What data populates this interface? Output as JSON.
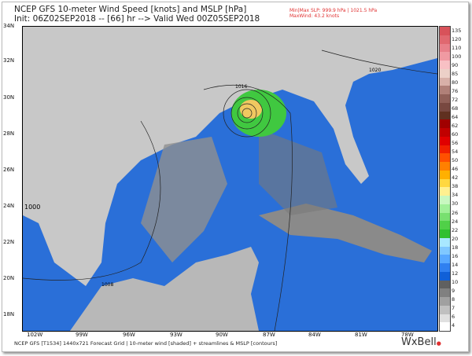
{
  "header": {
    "title": "NCEP GFS 10-meter Wind Speed [knots] and MSLP [hPa]",
    "subtitle": "Init: 06Z02SEP2018 -- [66] hr --> Valid Wed 00Z05SEP2018",
    "slp": "Min|Max SLP: 999.9 hPa | 1021.5 hPa",
    "maxwind": "MaxWind: 43.2 knots"
  },
  "axes": {
    "lat": [
      "34N",
      "32N",
      "30N",
      "28N",
      "26N",
      "24N",
      "22N",
      "20N",
      "18N"
    ],
    "lon": [
      "102W",
      "99W",
      "96W",
      "93W",
      "90W",
      "87W",
      "84W",
      "81W",
      "78W"
    ]
  },
  "contours": [
    "1016",
    "1020",
    "1008",
    "1000"
  ],
  "colorbar": {
    "labels": [
      "135",
      "120",
      "110",
      "100",
      "90",
      "85",
      "80",
      "76",
      "72",
      "68",
      "64",
      "62",
      "60",
      "56",
      "54",
      "50",
      "46",
      "42",
      "38",
      "34",
      "30",
      "26",
      "24",
      "22",
      "20",
      "18",
      "16",
      "14",
      "12",
      "10",
      "9",
      "8",
      "7",
      "6",
      "4"
    ],
    "colors": [
      "#d8525a",
      "#e06870",
      "#e8808a",
      "#f09aa2",
      "#f8c0c4",
      "#ecd0c8",
      "#d8b0a8",
      "#b08078",
      "#906058",
      "#784840",
      "#603020",
      "#a00000",
      "#c00000",
      "#e00000",
      "#f02000",
      "#ff5000",
      "#ff8000",
      "#ffb000",
      "#ffd840",
      "#fff090",
      "#c8f8c0",
      "#a0f098",
      "#78e070",
      "#50d048",
      "#30c030",
      "#a8e8ff",
      "#80c8ff",
      "#58a8ff",
      "#3080f0",
      "#1060d8",
      "#606060",
      "#808080",
      "#a0a0a0",
      "#c0c0c0",
      "#e0e0e0",
      "#ffffff"
    ]
  },
  "footer": "NCEP GFS [T1534] 1440x721 Forecast Grid | 10-meter wind [shaded] + streamlines & MSLP [contours]",
  "logo": "WxBell"
}
